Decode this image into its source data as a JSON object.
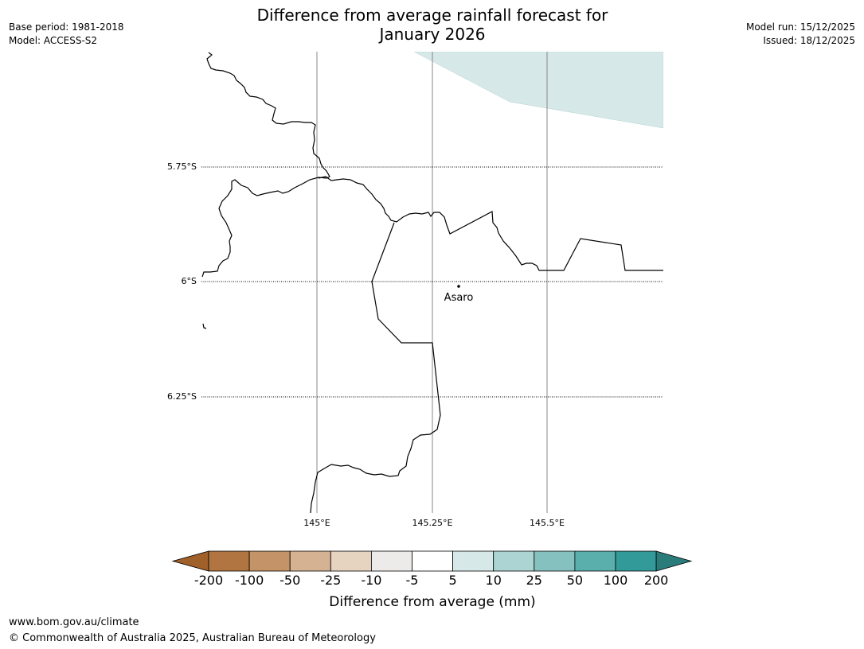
{
  "title_line1": "Difference from average rainfall forecast for",
  "title_line2": "January 2026",
  "base_period": "Base period: 1981-2018",
  "model": "Model: ACCESS-S2",
  "model_run": "Model run: 15/12/2025",
  "issued": "Issued: 18/12/2025",
  "map": {
    "lat_labels": [
      "5.75°S",
      "6°S",
      "6.25°S"
    ],
    "lon_labels": [
      "145°E",
      "145.25°E",
      "145.5°E"
    ],
    "place": {
      "name": "Asaro"
    }
  },
  "colorbar": {
    "title": "Difference from average (mm)",
    "tick_labels": [
      "-200",
      "-100",
      "-50",
      "-25",
      "-10",
      "-5",
      "5",
      "10",
      "25",
      "50",
      "100",
      "200"
    ],
    "colors": [
      "#a0602a",
      "#b07540",
      "#c49468",
      "#d4b292",
      "#e6d3c0",
      "#ecebe9",
      "#ffffff",
      "#d6e9e8",
      "#acd4d3",
      "#84c1bf",
      "#5aaeac",
      "#329a98",
      "#2a7c7a"
    ]
  },
  "footer": {
    "url": "www.bom.gov.au/climate",
    "copyright": "© Commonwealth of Australia 2025, Australian Bureau of Meteorology"
  }
}
